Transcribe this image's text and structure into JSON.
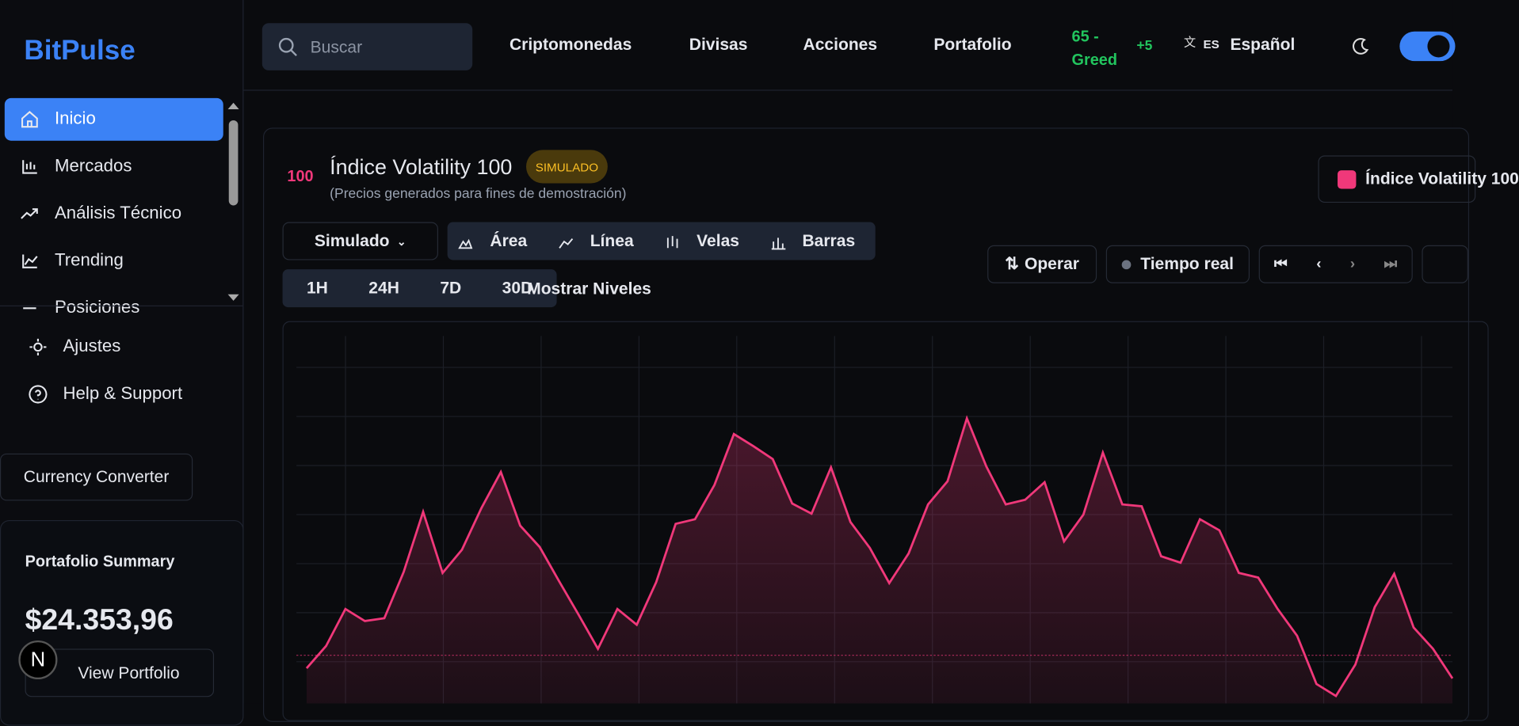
{
  "sidebar": {
    "logo": "BitPulse",
    "nav": [
      "Inicio",
      "Mercados",
      "Análisis Técnico",
      "Trending",
      "Posiciones"
    ],
    "settings": [
      "Ajustes",
      "Help & Support"
    ],
    "converter": "Currency Converter",
    "summary": {
      "title": "Portafolio Summary",
      "amount": "$24.353,96",
      "button": "View Portfolio"
    },
    "badge": "N"
  },
  "topbar": {
    "search": "Buscar",
    "links": [
      "Criptomonedas",
      "Divisas",
      "Acciones",
      "Portafolio"
    ],
    "sentiment": "65 - Greed",
    "sentiment_change": "+5",
    "lang_code": "ES",
    "language": "Español"
  },
  "header": {
    "code": "100",
    "title": "Índice Volatility 100",
    "tag": "SIMULADO",
    "subtitle": "(Precios generados para fines de demostración)",
    "mode": "Simulado",
    "chart_types": [
      "Área",
      "Línea",
      "Velas",
      "Barras"
    ],
    "ranges": [
      "1H",
      "24H",
      "7D",
      "30D"
    ],
    "levels": "Mostrar Niveles",
    "trade": "Operar",
    "realtime": "Tiempo real"
  },
  "chart_data": {
    "type": "area",
    "series": [
      {
        "name": "Índice Volatility 100",
        "color": "#f0387a",
        "values": [
          38,
          62,
          102,
          89,
          92,
          142,
          207,
          141,
          166,
          211,
          250,
          192,
          169,
          132,
          96,
          59,
          102,
          85,
          131,
          194,
          199,
          236,
          291,
          278,
          264,
          216,
          205,
          255,
          196,
          168,
          130,
          162,
          215,
          240,
          308,
          256,
          215,
          220,
          239,
          175,
          204,
          271,
          215,
          213,
          159,
          152,
          199,
          187,
          141,
          136,
          102,
          73,
          21,
          8,
          42,
          104,
          140,
          82,
          59,
          27
        ]
      }
    ],
    "ylim": [
      0,
      397
    ],
    "reference_line": 52,
    "grid": true
  }
}
